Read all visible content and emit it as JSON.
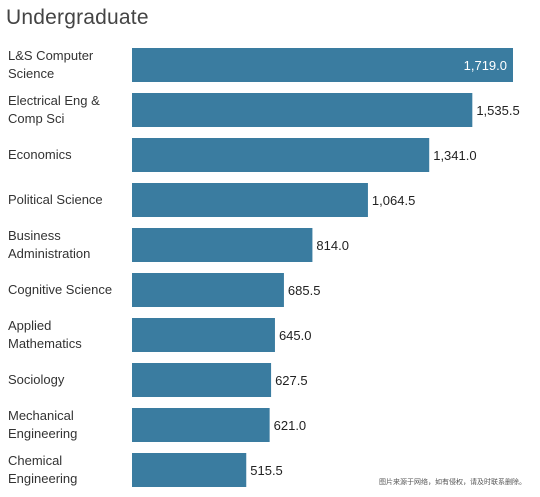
{
  "chart_data": {
    "type": "bar",
    "orientation": "horizontal",
    "title": "Undergraduate",
    "categories": [
      "L&S Computer Science",
      "Electrical Eng & Comp Sci",
      "Economics",
      "Political Science",
      "Business Administration",
      "Cognitive Science",
      "Applied Mathematics",
      "Sociology",
      "Mechanical Engineering",
      "Chemical Engineering"
    ],
    "values": [
      1719.0,
      1535.5,
      1341.0,
      1064.5,
      814.0,
      685.5,
      645.0,
      627.5,
      621.0,
      515.5
    ],
    "data_labels": [
      "1,719.0",
      "1,535.5",
      "1,341.0",
      "1,064.5",
      "814.0",
      "685.5",
      "645.0",
      "627.5",
      "621.0",
      "515.5"
    ],
    "xlim": [
      0,
      1719.0
    ],
    "grid": false,
    "legend": "none",
    "bar_color": "#3a7ca0",
    "inside_label_color": "#ffffff",
    "outside_label_color": "#222222"
  },
  "watermark": "图片来源于网络，如有侵权，请及时联系删除。"
}
